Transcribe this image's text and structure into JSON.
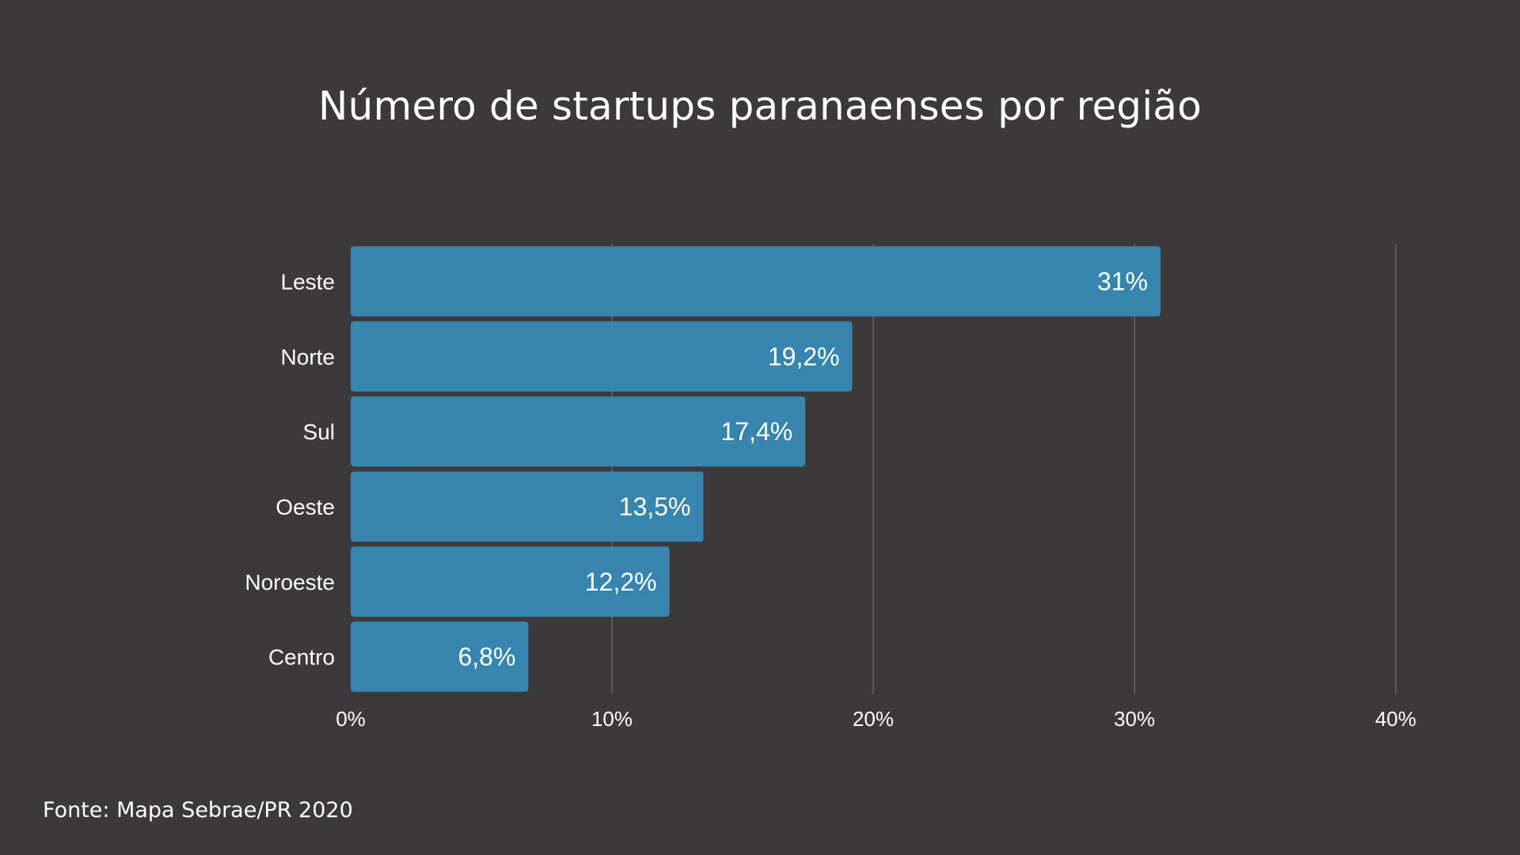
{
  "chart_data": {
    "type": "bar",
    "orientation": "horizontal",
    "title": "Número de startups paranaenses por região",
    "categories": [
      "Leste",
      "Norte",
      "Sul",
      "Oeste",
      "Noroeste",
      "Centro"
    ],
    "values": [
      31,
      19.2,
      17.4,
      13.5,
      12.2,
      6.8
    ],
    "value_labels": [
      "31%",
      "19,2%",
      "17,4%",
      "13,5%",
      "12,2%",
      "6,8%"
    ],
    "xlim": [
      0,
      40
    ],
    "x_ticks": [
      0,
      10,
      20,
      30,
      40
    ],
    "x_tick_labels": [
      "0%",
      "10%",
      "20%",
      "30%",
      "40%"
    ],
    "xlabel": "",
    "ylabel": "",
    "grid": "vertical",
    "legend": "none",
    "bar_color": "#3585ae",
    "source": "Fonte: Mapa Sebrae/PR 2020"
  },
  "colors": {
    "background": "#3c393a",
    "bar": "#3585ae",
    "text": "#ffffff",
    "grid": "#6e6b6c"
  }
}
